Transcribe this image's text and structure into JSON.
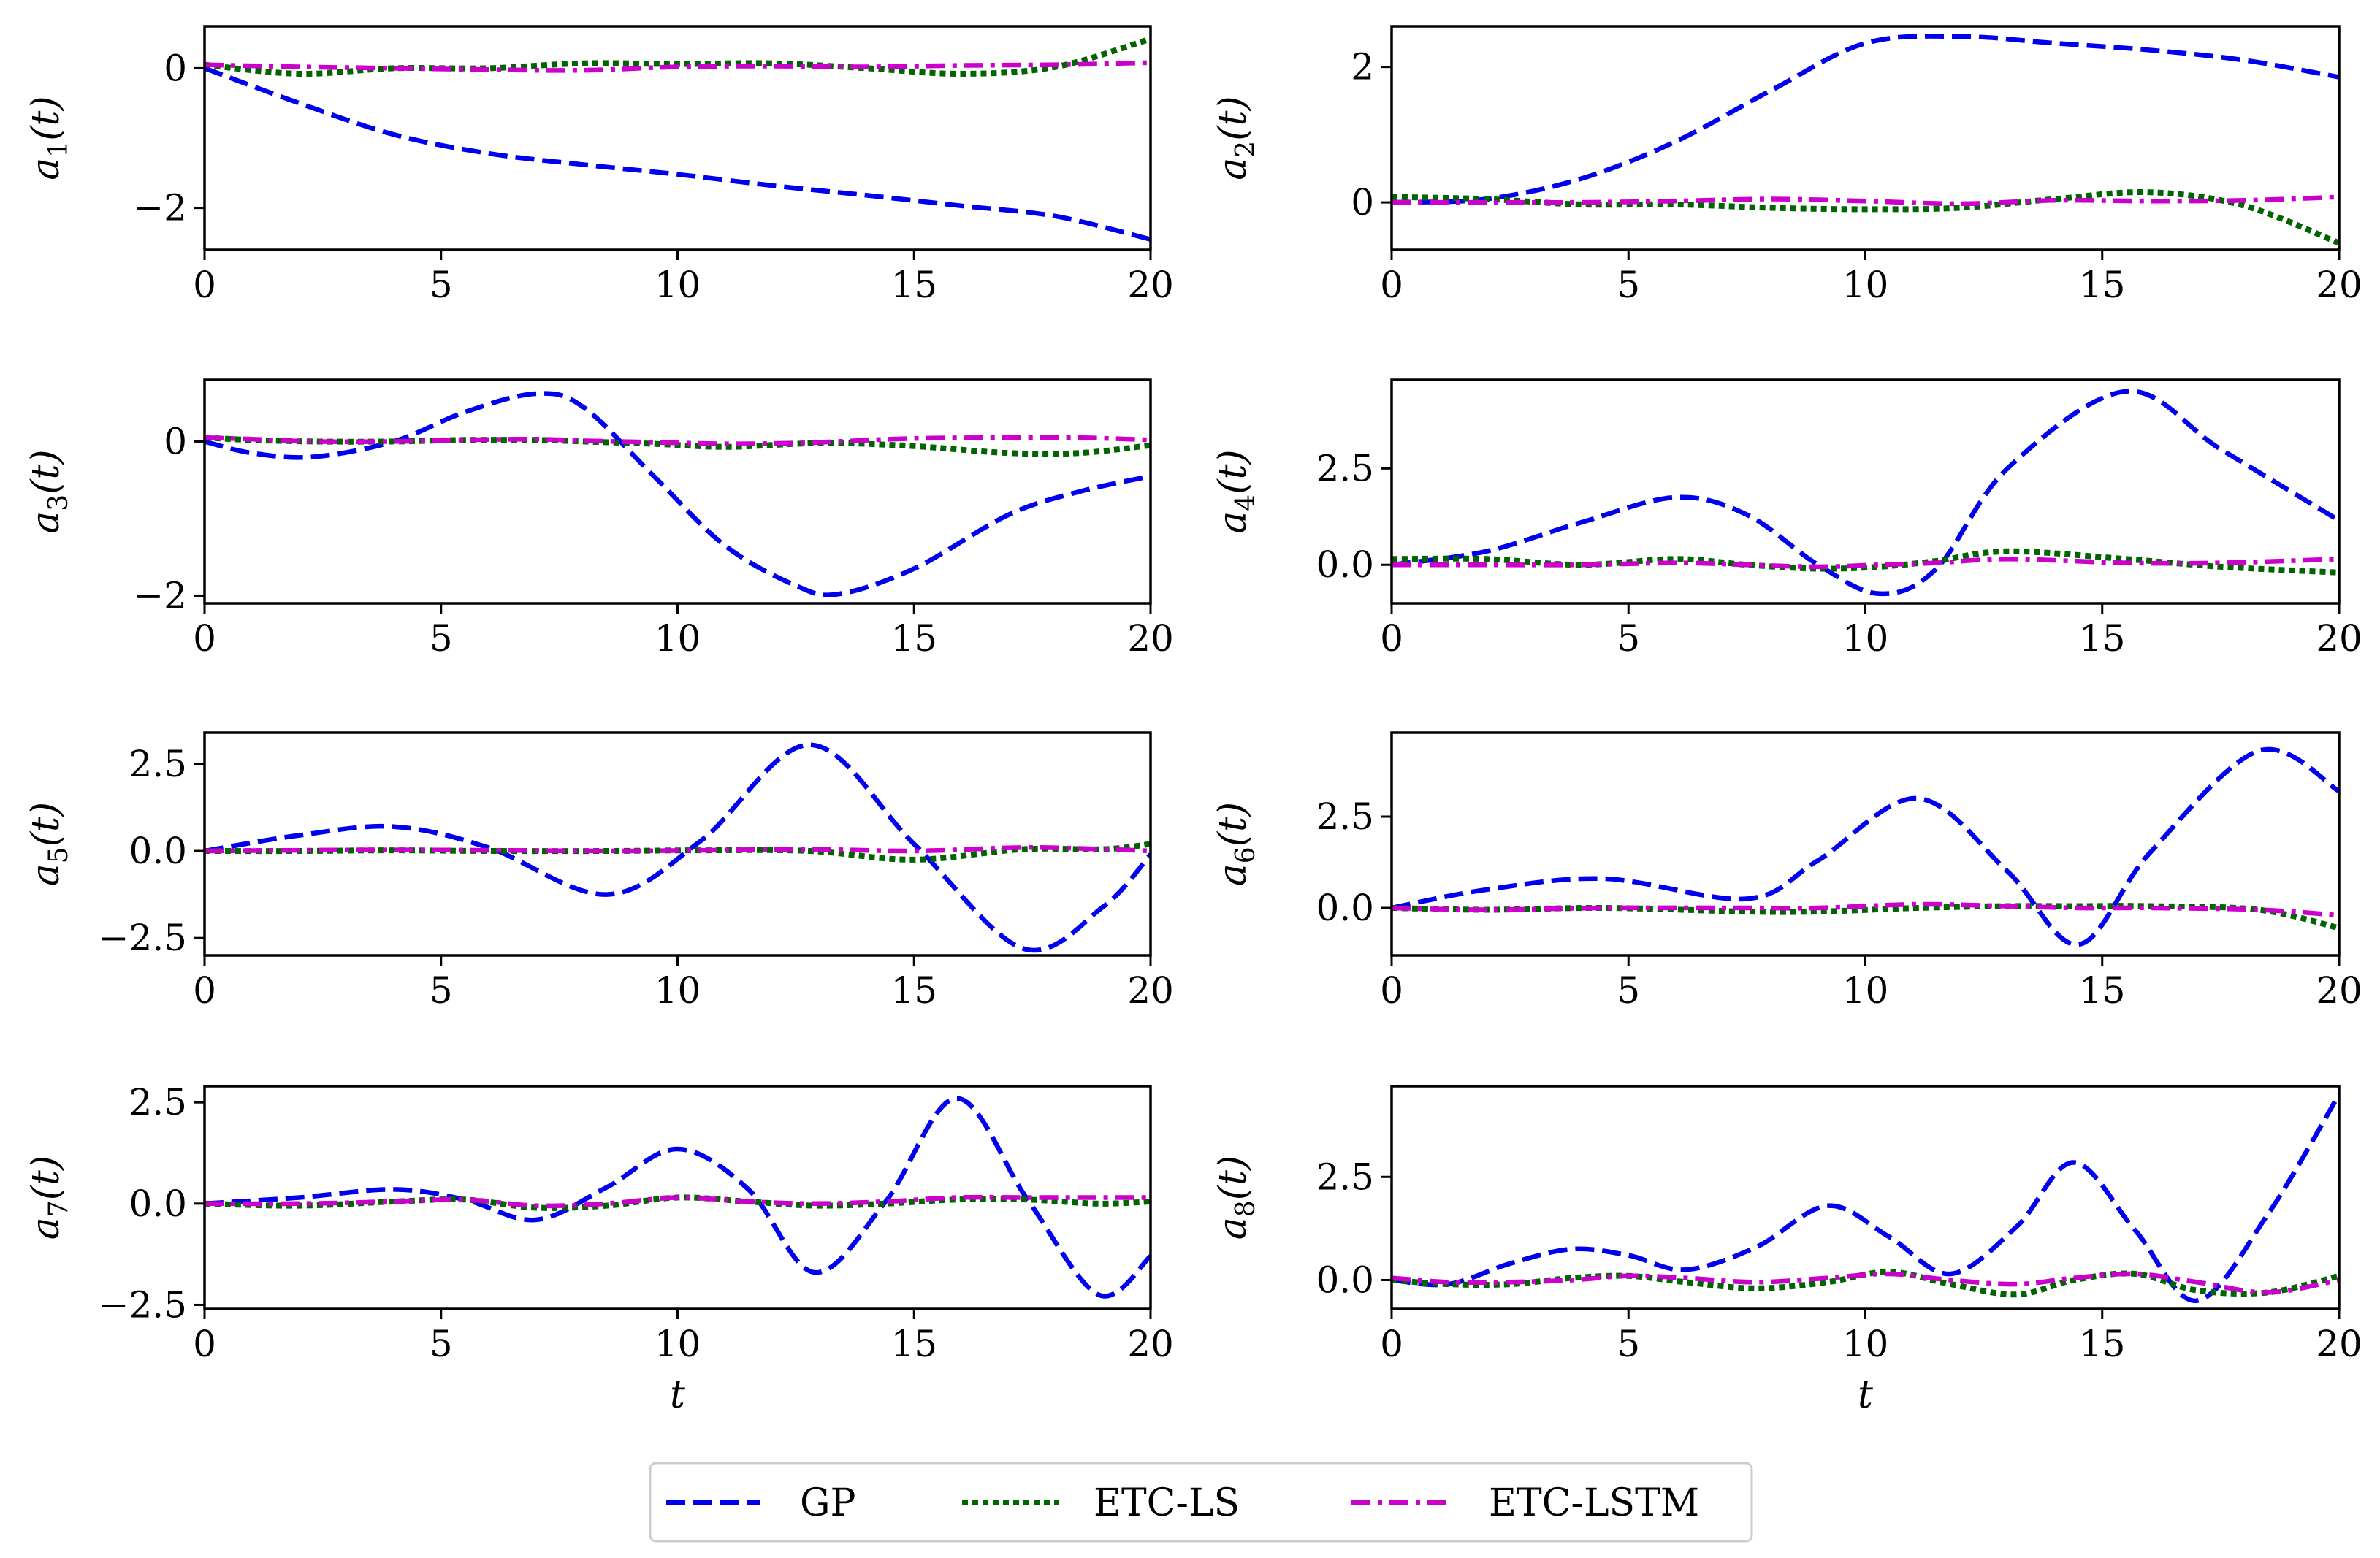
{
  "legend": {
    "items": [
      {
        "label": "GP",
        "color": "#0000ee",
        "style": "dashed"
      },
      {
        "label": "ETC-LS",
        "color": "#006400",
        "style": "dotted"
      },
      {
        "label": "ETC-LSTM",
        "color": "#cc00cc",
        "style": "dashdot"
      }
    ]
  },
  "chart_data": [
    {
      "type": "line",
      "ylabel": "a1(t)",
      "ylabel_var": "a",
      "ylabel_sub": "1",
      "ylabel_arg": "(t)",
      "xlabel": "",
      "xlim": [
        0,
        20
      ],
      "ylim": [
        -2.6,
        0.6
      ],
      "xticks": [
        0,
        5,
        10,
        15,
        20
      ],
      "yticks": [
        {
          "v": 0,
          "label": "0"
        },
        {
          "v": -2,
          "label": "−2"
        }
      ],
      "x": [
        0,
        2,
        4,
        6,
        8,
        10,
        12,
        14,
        16,
        18,
        20
      ],
      "series": [
        {
          "name": "GP",
          "values": [
            0,
            -0.5,
            -0.95,
            -1.22,
            -1.38,
            -1.52,
            -1.68,
            -1.82,
            -1.97,
            -2.12,
            -2.45
          ]
        },
        {
          "name": "ETC-LS",
          "values": [
            0.05,
            -0.08,
            0.0,
            0.0,
            0.07,
            0.06,
            0.07,
            0.0,
            -0.08,
            0.02,
            0.42
          ]
        },
        {
          "name": "ETC-LSTM",
          "values": [
            0.05,
            0.02,
            0.0,
            -0.02,
            -0.03,
            0.02,
            0.03,
            0.02,
            0.04,
            0.05,
            0.08
          ]
        }
      ]
    },
    {
      "type": "line",
      "ylabel": "a2(t)",
      "ylabel_var": "a",
      "ylabel_sub": "2",
      "ylabel_arg": "(t)",
      "xlabel": "",
      "xlim": [
        0,
        20
      ],
      "ylim": [
        -0.7,
        2.6
      ],
      "xticks": [
        0,
        5,
        10,
        15,
        20
      ],
      "yticks": [
        {
          "v": 2,
          "label": "2"
        },
        {
          "v": 0,
          "label": "0"
        }
      ],
      "x": [
        0,
        2,
        4,
        6,
        8,
        10,
        12,
        14,
        16,
        18,
        20
      ],
      "series": [
        {
          "name": "GP",
          "values": [
            0.0,
            0.05,
            0.35,
            0.9,
            1.65,
            2.35,
            2.45,
            2.35,
            2.25,
            2.1,
            1.85
          ]
        },
        {
          "name": "ETC-LS",
          "values": [
            0.08,
            0.05,
            -0.03,
            -0.03,
            -0.08,
            -0.1,
            -0.08,
            0.05,
            0.15,
            -0.05,
            -0.6
          ]
        },
        {
          "name": "ETC-LSTM",
          "values": [
            0.0,
            0.0,
            0.0,
            0.02,
            0.05,
            0.02,
            -0.02,
            0.03,
            0.02,
            0.03,
            0.08
          ]
        }
      ]
    },
    {
      "type": "line",
      "ylabel": "a3(t)",
      "ylabel_var": "a",
      "ylabel_sub": "3",
      "ylabel_arg": "(t)",
      "xlabel": "",
      "xlim": [
        0,
        20
      ],
      "ylim": [
        -2.1,
        0.8
      ],
      "xticks": [
        0,
        5,
        10,
        15,
        20
      ],
      "yticks": [
        {
          "v": 0,
          "label": "0"
        },
        {
          "v": -2,
          "label": "−2"
        }
      ],
      "x": [
        0,
        1,
        2.3,
        4,
        5.5,
        7,
        8,
        9.5,
        11,
        12.5,
        13.4,
        15,
        17,
        18.5,
        20
      ],
      "series": [
        {
          "name": "GP",
          "values": [
            0,
            -0.15,
            -0.2,
            0.0,
            0.38,
            0.62,
            0.45,
            -0.45,
            -1.35,
            -1.87,
            -1.98,
            -1.65,
            -0.95,
            -0.65,
            -0.45
          ]
        },
        {
          "name": "ETC-LS",
          "values": [
            0.05,
            0.02,
            0.0,
            0.0,
            0.02,
            0.02,
            0.0,
            -0.03,
            -0.07,
            -0.03,
            -0.02,
            -0.06,
            -0.15,
            -0.15,
            -0.05
          ]
        },
        {
          "name": "ETC-LSTM",
          "values": [
            0.05,
            0.03,
            0.0,
            0.0,
            0.02,
            0.03,
            0.01,
            -0.01,
            -0.03,
            -0.02,
            0.0,
            0.04,
            0.05,
            0.05,
            0.02
          ]
        }
      ]
    },
    {
      "type": "line",
      "ylabel": "a4(t)",
      "ylabel_var": "a",
      "ylabel_sub": "4",
      "ylabel_arg": "(t)",
      "xlabel": "",
      "xlim": [
        0,
        20
      ],
      "ylim": [
        -1.0,
        4.8
      ],
      "xticks": [
        0,
        5,
        10,
        15,
        20
      ],
      "yticks": [
        {
          "v": 2.5,
          "label": "2.5"
        },
        {
          "v": 0,
          "label": "0.0"
        }
      ],
      "x": [
        0,
        2,
        4,
        6,
        7.5,
        9,
        10.3,
        11.5,
        13,
        15.5,
        17.5,
        20
      ],
      "series": [
        {
          "name": "GP",
          "values": [
            0,
            0.35,
            1.1,
            1.75,
            1.3,
            0.0,
            -0.75,
            -0.1,
            2.5,
            4.5,
            3.0,
            1.15
          ]
        },
        {
          "name": "ETC-LS",
          "values": [
            0.15,
            0.15,
            0.0,
            0.15,
            0.0,
            -0.1,
            -0.05,
            0.1,
            0.35,
            0.15,
            -0.05,
            -0.2
          ]
        },
        {
          "name": "ETC-LSTM",
          "values": [
            0,
            0,
            0.0,
            0.05,
            0.0,
            -0.05,
            0.0,
            0.05,
            0.15,
            0.05,
            0.05,
            0.15
          ]
        }
      ]
    },
    {
      "type": "line",
      "ylabel": "a5(t)",
      "ylabel_var": "a",
      "ylabel_sub": "5",
      "ylabel_arg": "(t)",
      "xlabel": "",
      "xlim": [
        0,
        20
      ],
      "ylim": [
        -3.0,
        3.4
      ],
      "xticks": [
        0,
        5,
        10,
        15,
        20
      ],
      "yticks": [
        {
          "v": 2.5,
          "label": "2.5"
        },
        {
          "v": 0,
          "label": "0.0"
        },
        {
          "v": -2.5,
          "label": "−2.5"
        }
      ],
      "x": [
        0,
        2,
        4,
        6,
        8.5,
        10.5,
        12.8,
        15,
        17.3,
        19,
        20
      ],
      "series": [
        {
          "name": "GP",
          "values": [
            0,
            0.45,
            0.7,
            0.1,
            -1.25,
            0.3,
            3.05,
            0.2,
            -2.8,
            -1.6,
            -0.1
          ]
        },
        {
          "name": "ETC-LS",
          "values": [
            0.0,
            0.0,
            0.02,
            0.0,
            0.0,
            0.02,
            0.0,
            -0.25,
            0.05,
            0.05,
            0.2
          ]
        },
        {
          "name": "ETC-LSTM",
          "values": [
            0.0,
            0.02,
            0.03,
            0.02,
            0.0,
            0.02,
            0.05,
            0.0,
            0.1,
            0.05,
            0.0
          ]
        }
      ]
    },
    {
      "type": "line",
      "ylabel": "a6(t)",
      "ylabel_var": "a",
      "ylabel_sub": "6",
      "ylabel_arg": "(t)",
      "xlabel": "",
      "xlim": [
        0,
        20
      ],
      "ylim": [
        -1.3,
        4.8
      ],
      "xticks": [
        0,
        5,
        10,
        15,
        20
      ],
      "yticks": [
        {
          "v": 2.5,
          "label": "2.5"
        },
        {
          "v": 0,
          "label": "0.0"
        }
      ],
      "x": [
        0,
        2,
        4.5,
        7.5,
        9,
        11.1,
        13,
        14.5,
        16,
        18.3,
        20
      ],
      "series": [
        {
          "name": "GP",
          "values": [
            0,
            0.5,
            0.8,
            0.25,
            1.3,
            3.0,
            1.0,
            -1.0,
            1.5,
            4.3,
            3.2
          ]
        },
        {
          "name": "ETC-LS",
          "values": [
            0.0,
            -0.05,
            0.0,
            -0.1,
            -0.1,
            0.0,
            0.05,
            0.05,
            0.05,
            -0.05,
            -0.55
          ]
        },
        {
          "name": "ETC-LSTM",
          "values": [
            0.0,
            -0.05,
            0.0,
            0.0,
            0.0,
            0.1,
            0.05,
            0.0,
            0.0,
            -0.05,
            -0.2
          ]
        }
      ]
    },
    {
      "type": "line",
      "ylabel": "a7(t)",
      "ylabel_var": "a",
      "ylabel_sub": "7",
      "ylabel_arg": "(t)",
      "xlabel": "t",
      "xlim": [
        0,
        20
      ],
      "ylim": [
        -2.6,
        2.9
      ],
      "xticks": [
        0,
        5,
        10,
        15,
        20
      ],
      "yticks": [
        {
          "v": 2.5,
          "label": "2.5"
        },
        {
          "v": 0,
          "label": "0.0"
        },
        {
          "v": -2.5,
          "label": "−2.5"
        }
      ],
      "x": [
        0,
        2,
        4,
        5.5,
        7,
        8.5,
        10,
        11.5,
        12.9,
        14.4,
        15.9,
        17.4,
        18.9,
        20
      ],
      "series": [
        {
          "name": "GP",
          "values": [
            0,
            0.15,
            0.35,
            0.1,
            -0.4,
            0.4,
            1.35,
            0.35,
            -1.7,
            0.05,
            2.6,
            0.1,
            -2.25,
            -1.3
          ]
        },
        {
          "name": "ETC-LS",
          "values": [
            0.0,
            -0.05,
            0.05,
            0.1,
            -0.1,
            -0.05,
            0.15,
            0.05,
            -0.05,
            0.0,
            0.1,
            0.1,
            0.0,
            0.05
          ]
        },
        {
          "name": "ETC-LSTM",
          "values": [
            0.0,
            0.0,
            0.05,
            0.1,
            -0.05,
            0.0,
            0.15,
            0.05,
            0.0,
            0.05,
            0.15,
            0.15,
            0.15,
            0.15
          ]
        }
      ]
    },
    {
      "type": "line",
      "ylabel": "a8(t)",
      "ylabel_var": "a",
      "ylabel_sub": "8",
      "ylabel_arg": "(t)",
      "xlabel": "t",
      "xlim": [
        0,
        20
      ],
      "ylim": [
        -0.7,
        4.7
      ],
      "xticks": [
        0,
        5,
        10,
        15,
        20
      ],
      "yticks": [
        {
          "v": 2.5,
          "label": "2.5"
        },
        {
          "v": 0,
          "label": "0.0"
        }
      ],
      "x": [
        0,
        1.2,
        2.5,
        3.8,
        5,
        6.2,
        7.7,
        9.2,
        10.5,
        11.8,
        13.2,
        14.4,
        15.7,
        17,
        18.5,
        20
      ],
      "series": [
        {
          "name": "GP",
          "values": [
            0,
            -0.1,
            0.4,
            0.75,
            0.6,
            0.25,
            0.8,
            1.8,
            1.05,
            0.15,
            1.3,
            2.85,
            1.2,
            -0.5,
            1.6,
            4.5
          ]
        },
        {
          "name": "ETC-LS",
          "values": [
            0.0,
            -0.1,
            -0.1,
            0.05,
            0.1,
            -0.05,
            -0.2,
            -0.05,
            0.2,
            -0.1,
            -0.35,
            0.0,
            0.15,
            -0.25,
            -0.3,
            0.1
          ]
        },
        {
          "name": "ETC-LSTM",
          "values": [
            0.05,
            -0.05,
            -0.05,
            0.0,
            0.1,
            0.05,
            -0.05,
            0.05,
            0.15,
            0.0,
            -0.1,
            0.05,
            0.15,
            -0.05,
            -0.3,
            0.0
          ]
        }
      ]
    }
  ]
}
